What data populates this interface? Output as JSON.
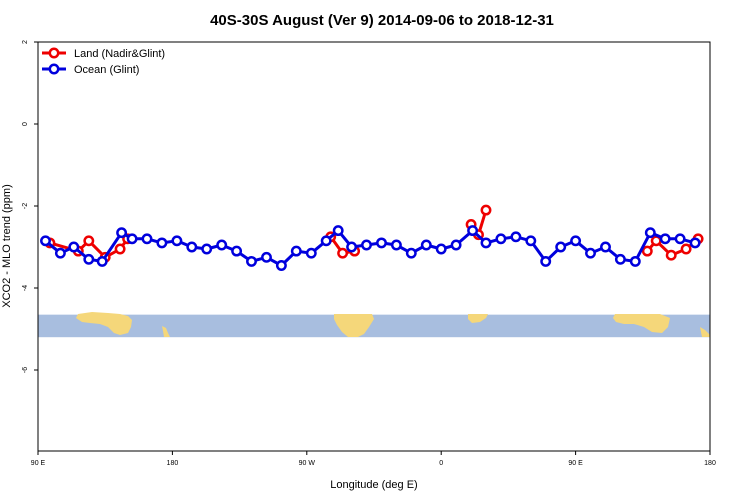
{
  "chart_data": {
    "type": "line",
    "title": "40S-30S August (Ver 9)   2014-09-06 to 2018-12-31",
    "xlabel": "Longitude (deg E)",
    "ylabel": "XCO2 - MLO trend (ppm)",
    "x_ticks": [
      {
        "value": 90,
        "label": "90 E"
      },
      {
        "value": 180,
        "label": "180"
      },
      {
        "value": 270,
        "label": "90 W"
      },
      {
        "value": 360,
        "label": "0"
      },
      {
        "value": 450,
        "label": "90 E"
      },
      {
        "value": 540,
        "label": "180"
      }
    ],
    "y_ticks": [
      {
        "value": 2,
        "label": "2"
      },
      {
        "value": 0,
        "label": "0"
      },
      {
        "value": -2,
        "label": "-2"
      },
      {
        "value": -4,
        "label": "-4"
      },
      {
        "value": -6,
        "label": "-6"
      }
    ],
    "xlim": [
      90,
      540
    ],
    "ylim": [
      -8,
      2
    ],
    "legend_position": "top-left",
    "series": [
      {
        "name": "Land (Nadir&Glint)",
        "color": "#ee0000",
        "x": [
          95,
          115,
          125,
          135,
          140,
          145,
          155,
          155,
          150,
          149.5,
          155
        ],
        "points": [
          [
            98,
            -2.9
          ],
          [
            117,
            -3.1
          ],
          [
            124,
            -2.85
          ],
          [
            135,
            -3.25
          ],
          [
            145,
            -3.05
          ],
          [
            150,
            -2.8
          ],
          [
            286,
            -2.75
          ],
          [
            294,
            -3.15
          ],
          [
            302,
            -3.1
          ],
          [
            380,
            -2.45
          ],
          [
            385,
            -2.7
          ],
          [
            390,
            -2.1
          ],
          [
            498,
            -3.1
          ],
          [
            504,
            -2.85
          ],
          [
            514,
            -3.2
          ],
          [
            524,
            -3.05
          ],
          [
            532,
            -2.8
          ]
        ],
        "segments": [
          [
            0,
            5
          ],
          [
            6,
            8
          ],
          [
            9,
            11
          ],
          [
            12,
            16
          ]
        ]
      },
      {
        "name": "Ocean (Glint)",
        "color": "#0000dd",
        "points": [
          [
            95,
            -2.85
          ],
          [
            105,
            -3.15
          ],
          [
            114,
            -3.0
          ],
          [
            124,
            -3.3
          ],
          [
            133,
            -3.35
          ],
          [
            146,
            -2.65
          ],
          [
            153,
            -2.8
          ],
          [
            163,
            -2.8
          ],
          [
            173,
            -2.9
          ],
          [
            183,
            -2.85
          ],
          [
            193,
            -3.0
          ],
          [
            203,
            -3.05
          ],
          [
            213,
            -2.95
          ],
          [
            223,
            -3.1
          ],
          [
            233,
            -3.35
          ],
          [
            243,
            -3.25
          ],
          [
            253,
            -3.45
          ],
          [
            263,
            -3.1
          ],
          [
            273,
            -3.15
          ],
          [
            283,
            -2.85
          ],
          [
            291,
            -2.6
          ],
          [
            300,
            -3.0
          ],
          [
            310,
            -2.95
          ],
          [
            320,
            -2.9
          ],
          [
            330,
            -2.95
          ],
          [
            340,
            -3.15
          ],
          [
            350,
            -2.95
          ],
          [
            360,
            -3.05
          ],
          [
            370,
            -2.95
          ],
          [
            381,
            -2.6
          ],
          [
            390,
            -2.9
          ],
          [
            400,
            -2.8
          ],
          [
            410,
            -2.75
          ],
          [
            420,
            -2.85
          ],
          [
            430,
            -3.35
          ],
          [
            440,
            -3.0
          ],
          [
            450,
            -2.85
          ],
          [
            460,
            -3.15
          ],
          [
            470,
            -3.0
          ],
          [
            480,
            -3.3
          ],
          [
            490,
            -3.35
          ],
          [
            500,
            -2.65
          ],
          [
            510,
            -2.8
          ],
          [
            520,
            -2.8
          ],
          [
            530,
            -2.9
          ]
        ]
      }
    ],
    "map_strip": {
      "ymin": -5.2,
      "ymax": -4.65,
      "ocean_color": "#a8bedf",
      "land_color": "#f5d77a"
    }
  }
}
